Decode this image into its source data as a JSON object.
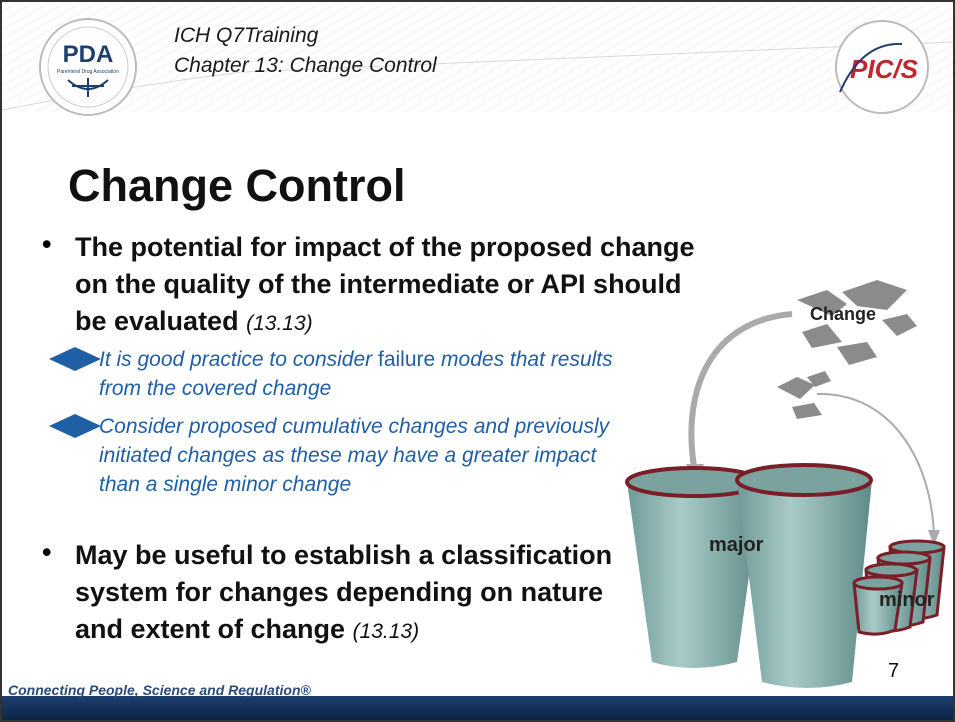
{
  "header": {
    "line1": "ICH Q7Training",
    "line2": "Chapter 13: Change Control",
    "logo_left": "PDA",
    "logo_left_sub": "Parenteral Drug Association",
    "logo_right": "PIC/S"
  },
  "title": "Change Control",
  "bullets": [
    {
      "text": "The potential for impact of the proposed change on the quality of the intermediate or API should be evaluated",
      "ref": "(13.13)",
      "sub": [
        {
          "segments": [
            "It is good practice to consider",
            "failure",
            "modes that results from the covered change"
          ]
        },
        {
          "segments": [
            "Consider proposed cumulative changes and previously initiated changes as these may have a greater impact than a single minor change"
          ]
        }
      ]
    },
    {
      "text": "May be useful to establish a classification system for changes depending on nature and extent of change",
      "ref": "(13.13)"
    }
  ],
  "diagram": {
    "change": "Change",
    "major": "major",
    "minor": "minor"
  },
  "footer": {
    "tagline": "Connecting People, Science and Regulation®",
    "page": "7"
  }
}
